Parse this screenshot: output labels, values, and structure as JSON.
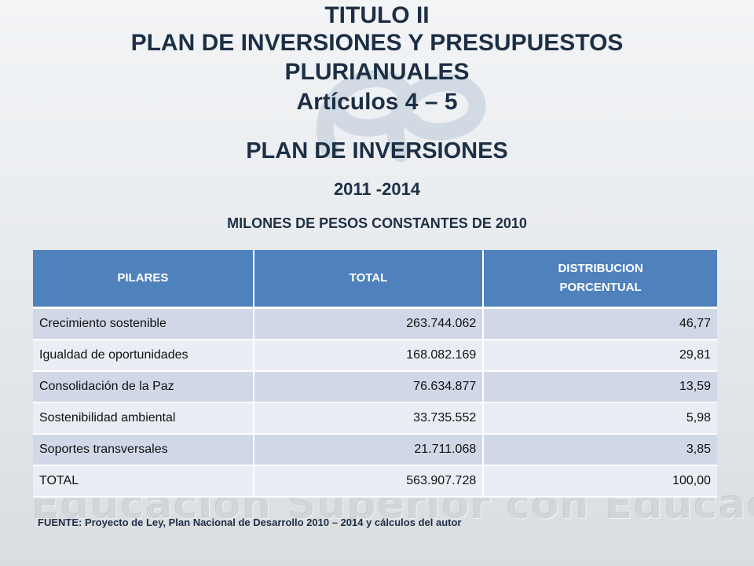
{
  "watermark": {
    "text": "Educacion Superior con Educacion Tecnologica"
  },
  "title": {
    "line1": "TITULO II",
    "line2": "PLAN DE INVERSIONES Y PRESUPUESTOS",
    "line3": "PLURIANUALES",
    "line4": "Artículos 4 – 5"
  },
  "subtitle": {
    "heading": "PLAN DE INVERSIONES",
    "period": "2011 -2014",
    "units": "MILONES DE PESOS CONSTANTES DE 2010"
  },
  "table": {
    "headers": [
      "PILARES",
      "TOTAL",
      "DISTRIBUCION",
      "PORCENTUAL"
    ],
    "rows": [
      {
        "pilar": "Crecimiento sostenible",
        "total": "263.744.062",
        "pct": "46,77"
      },
      {
        "pilar": "Igualdad de oportunidades",
        "total": "168.082.169",
        "pct": "29,81"
      },
      {
        "pilar": "Consolidación de la Paz",
        "total": "76.634.877",
        "pct": "13,59"
      },
      {
        "pilar": "Sostenibilidad ambiental",
        "total": "33.735.552",
        "pct": "5,98"
      },
      {
        "pilar": "Soportes transversales",
        "total": "21.711.068",
        "pct": "3,85"
      },
      {
        "pilar": "TOTAL",
        "total": "563.907.728",
        "pct": "100,00"
      }
    ]
  },
  "footnote": "FUENTE: Proyecto de Ley, Plan Nacional de Desarrollo 2010 – 2014 y cálculos del autor",
  "colors": {
    "header_bg": "#4f81bd",
    "row_odd": "#d0d8e8",
    "row_even": "#e9edf4",
    "title_text": "#1d2f45"
  }
}
